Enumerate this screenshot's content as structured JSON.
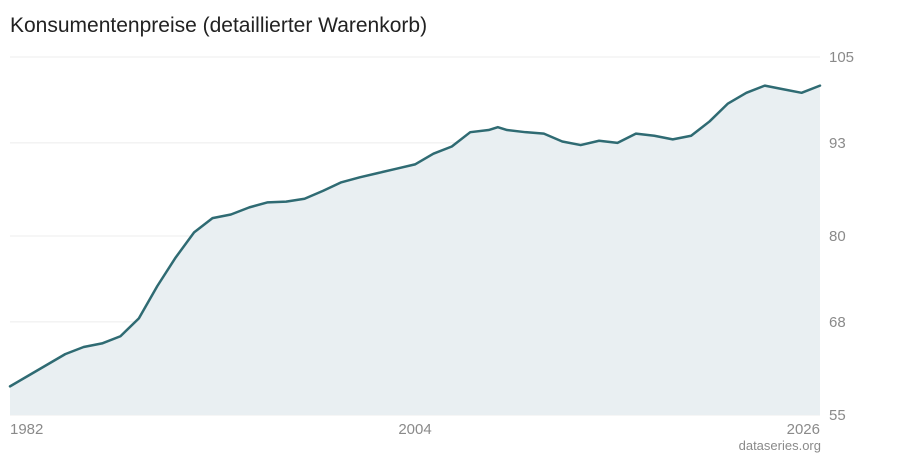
{
  "chart_title": "Konsumentenpreise (detaillierter Warenkorb)",
  "source_label": "dataseries.org",
  "colors": {
    "line": "#2f6b73",
    "area": "#e9eff2",
    "grid": "#ececec",
    "axis_text": "#8a8a8a",
    "title": "#222222"
  },
  "chart_data": {
    "type": "area",
    "title": "Konsumentenpreise (detaillierter Warenkorb)",
    "xlabel": "",
    "ylabel": "",
    "xlim": [
      1982,
      2026
    ],
    "ylim": [
      55,
      105
    ],
    "x_tick_labels": [
      "1982",
      "2004",
      "2026"
    ],
    "y_tick_labels": [
      "105",
      "93",
      "80",
      "68",
      "55"
    ],
    "y_ticks": [
      105,
      93,
      80,
      68,
      55
    ],
    "grid": true,
    "y_axis_position": "right",
    "series": [
      {
        "x": [
          1982.0,
          1983.0,
          1984.0,
          1985.0,
          1986.0,
          1987.0,
          1988.0,
          1989.0,
          1990.0,
          1991.0,
          1992.0,
          1993.0,
          1994.0,
          1995.0,
          1996.0,
          1997.0,
          1998.0,
          1999.0,
          2000.0,
          2001.0,
          2002.0,
          2003.0,
          2004.0,
          2005.0,
          2006.0,
          2007.0,
          2008.0,
          2008.5,
          2009.0,
          2010.0,
          2011.0,
          2012.0,
          2013.0,
          2014.0,
          2015.0,
          2016.0,
          2017.0,
          2018.0,
          2019.0,
          2020.0,
          2021.0,
          2022.0,
          2023.0,
          2024.0,
          2025.0,
          2026.0
        ],
        "values": [
          59.0,
          60.5,
          62.0,
          63.5,
          64.5,
          65.0,
          66.0,
          68.5,
          73.0,
          77.0,
          80.5,
          82.5,
          83.0,
          84.0,
          84.7,
          84.8,
          85.2,
          86.3,
          87.5,
          88.2,
          88.8,
          89.4,
          90.0,
          91.5,
          92.5,
          94.5,
          94.8,
          95.2,
          94.8,
          94.5,
          94.3,
          93.2,
          92.7,
          93.3,
          93.0,
          94.3,
          94.0,
          93.5,
          94.0,
          96.0,
          98.5,
          100.0,
          101.0,
          100.5,
          100.0,
          101.0
        ]
      }
    ]
  }
}
